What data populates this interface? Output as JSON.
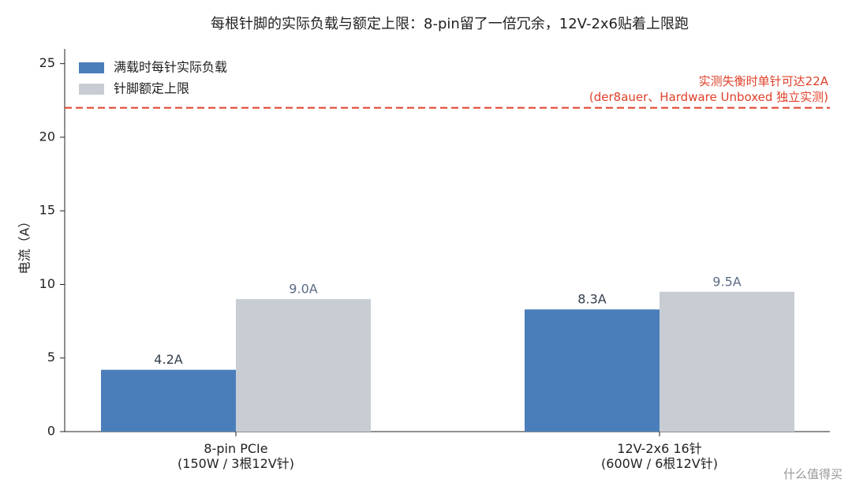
{
  "chart_data": {
    "type": "bar",
    "title": "每根针脚的实际负载与额定上限：8-pin留了一倍冗余，12V-2x6贴着上限跑",
    "y_label": "电流（A）",
    "categories": [
      "8-pin PCIe\n(150W / 3根12V针)",
      "12V-2x6 16针\n(600W / 6根12V针)"
    ],
    "series": [
      {
        "name": "满载时每针实际负载",
        "color": "#4a7ebb",
        "values": [
          4.2,
          8.3
        ],
        "value_labels": [
          "4.2A",
          "8.3A"
        ],
        "label_color": "#333d4d"
      },
      {
        "name": "针脚额定上限",
        "color": "#c8cdd4",
        "values": [
          9.0,
          9.5
        ],
        "value_labels": [
          "9.0A",
          "9.5A"
        ],
        "label_color": "#5c6b85"
      }
    ],
    "reference_lines": [
      {
        "value": 22,
        "color": "#e0402a",
        "label": "实测失衡时单针可达22A\n(der8auer、Hardware Unboxed 独立实测)"
      }
    ],
    "ylim": [
      0,
      26
    ],
    "yticks": [
      0,
      5,
      10,
      15,
      20,
      25
    ],
    "legend": "upper-left",
    "watermark": "什么值得买"
  }
}
